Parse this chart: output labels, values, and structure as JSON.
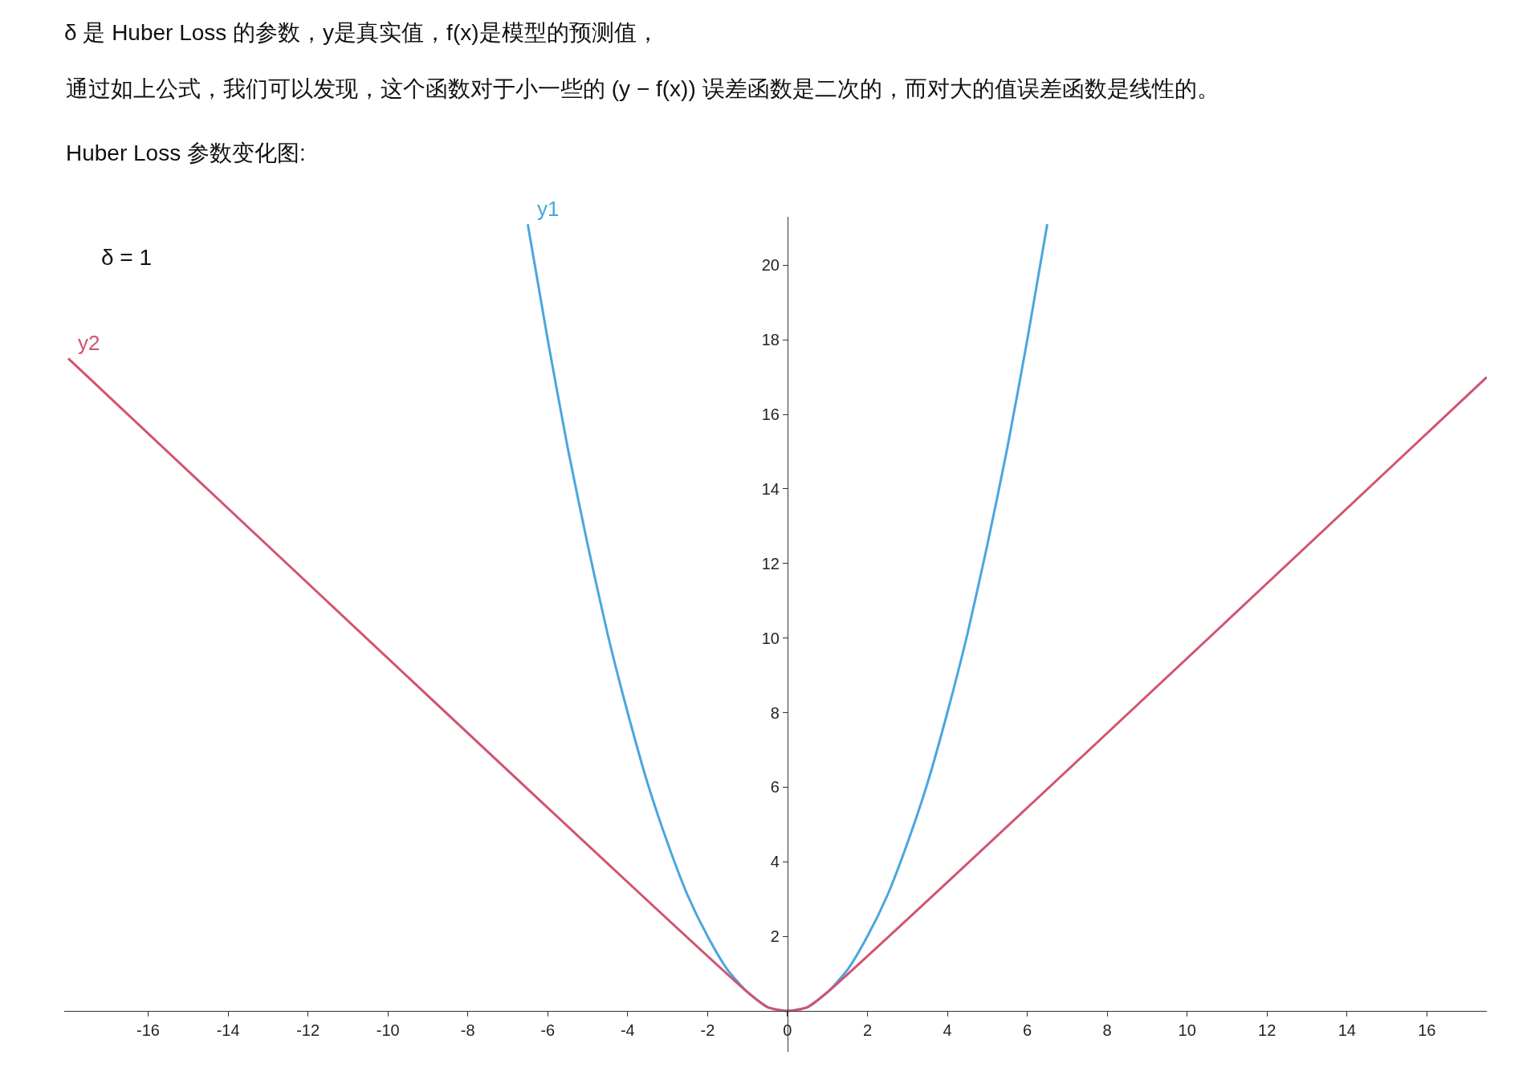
{
  "chart_data": {
    "type": "line",
    "title": "δ 是 Huber Loss 的参数，y是真实值，f(x)是模型的预测值，",
    "subtitle": "通过如上公式，我们可以发现，这个函数对于小一些的 (y − f(x)) 误差函数是二次的，而对大的值误差函数是线性的。",
    "annotations": [
      "Huber Loss 参数变化图:",
      "δ = 1"
    ],
    "series": [
      {
        "name": "y1",
        "color": "#4aa6de",
        "x": [
          -6.5,
          -6,
          -5.5,
          -5,
          -4.5,
          -4,
          -3.5,
          -3,
          -2.5,
          -2,
          -1.5,
          -1,
          -0.5,
          0,
          0.5,
          1,
          1.5,
          2,
          2.5,
          3,
          3.5,
          4,
          4.5,
          5,
          5.5,
          6,
          6.5
        ],
        "values": [
          21.1,
          18,
          15.1,
          12.5,
          10.1,
          8,
          6.1,
          4.5,
          3.1,
          2,
          1.1,
          0.5,
          0.1,
          0,
          0.1,
          0.5,
          1.1,
          2,
          3.1,
          4.5,
          6.1,
          8,
          10.1,
          12.5,
          15.1,
          18,
          21.1
        ]
      },
      {
        "name": "y2",
        "color": "#d2546e",
        "x": [
          -18,
          -1,
          -0.5,
          0,
          0.5,
          1,
          17.5
        ],
        "values": [
          17.5,
          0.5,
          0.1,
          0,
          0.1,
          0.5,
          17
        ]
      }
    ],
    "xlim": [
      -18.1,
      17.5
    ],
    "ylim": [
      -1.1,
      21.3
    ],
    "xticks": [
      -16,
      -14,
      -12,
      -10,
      -8,
      -6,
      -4,
      -2,
      0,
      2,
      4,
      6,
      8,
      10,
      12,
      14,
      16
    ],
    "yticks": [
      2,
      4,
      6,
      8,
      10,
      12,
      14,
      16,
      18,
      20
    ],
    "legend": false,
    "marker": "none",
    "line_style": "solid"
  }
}
